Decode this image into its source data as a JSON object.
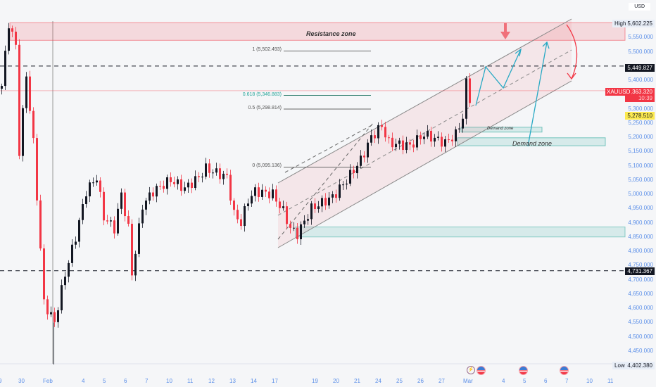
{
  "symbol": "XAUUSD",
  "currency": "USD",
  "colors": {
    "up": "#131722",
    "down": "#f23645",
    "resistance": "#f23645",
    "demand": "#26a69a",
    "projection": "#28a9c4",
    "fib": "#5b8b83"
  },
  "price_axis": {
    "ticks": [
      "5,550.000",
      "5,500.000",
      "5,400.000",
      "5,300.000",
      "5,250.000",
      "5,200.000",
      "5,150.000",
      "5,100.000",
      "5,050.000",
      "5,000.000",
      "4,950.000",
      "4,900.000",
      "4,850.000",
      "4,800.000",
      "4,750.000",
      "4,700.000",
      "4,650.000",
      "4,600.000",
      "4,550.000",
      "4,500.000",
      "4,450.000"
    ],
    "tick_values": [
      5550,
      5500,
      5400,
      5300,
      5250,
      5200,
      5150,
      5100,
      5050,
      5000,
      4950,
      4900,
      4850,
      4800,
      4750,
      4700,
      4650,
      4600,
      4550,
      4500,
      4450
    ],
    "high": {
      "label": "High",
      "value": "5,602.225",
      "num": 5602.225
    },
    "low": {
      "label": "Low",
      "value": "4,402.380",
      "num": 4402.38
    },
    "current": {
      "symbol": "XAUUSD",
      "value": "5,363.320",
      "num": 5363.32,
      "countdown": "10:39"
    },
    "level_upper": {
      "value": "5,449.827",
      "num": 5449.827
    },
    "level_lower": {
      "value": "4,731.367",
      "num": 4731.367
    },
    "yellow": {
      "value": "5,278.510",
      "num": 5278.51
    }
  },
  "time_axis": {
    "labels": [
      "9",
      "30",
      "Feb",
      "4",
      "5",
      "6",
      "7",
      "10",
      "11",
      "12",
      "13",
      "14",
      "17",
      "19",
      "20",
      "21",
      "24",
      "25",
      "26",
      "27",
      "Mar",
      "4",
      "5",
      "6",
      "7",
      "10",
      "11"
    ]
  },
  "fib": [
    {
      "label": "1 (5,502.493)",
      "price": 5502.493
    },
    {
      "label": "0.618 (5,346.883)",
      "price": 5346.883
    },
    {
      "label": "0.5 (5,298.814)",
      "price": 5298.814
    },
    {
      "label": "0 (5,095.136)",
      "price": 5095.136
    }
  ],
  "zones": {
    "resistance": {
      "label": "Resistance zone",
      "from": 5540,
      "to": 5602
    },
    "demand_small": {
      "label": "Demand zone",
      "from": 5218,
      "to": 5235
    },
    "demand_big": {
      "label": "Demand zone",
      "from": 5170,
      "to": 5198
    },
    "support": {
      "from": 4850,
      "to": 4885
    }
  },
  "chart_data": {
    "type": "candlestick",
    "anchors": [
      [
        0,
        5380
      ],
      [
        2,
        5600
      ],
      [
        4,
        5520
      ],
      [
        5,
        5150
      ],
      [
        7,
        5420
      ],
      [
        9,
        5180
      ],
      [
        12,
        4620
      ],
      [
        15,
        4550
      ],
      [
        18,
        4720
      ],
      [
        21,
        4850
      ],
      [
        24,
        5010
      ],
      [
        27,
        5060
      ],
      [
        29,
        4920
      ],
      [
        32,
        4880
      ],
      [
        34,
        5000
      ],
      [
        36,
        4880
      ],
      [
        37,
        4720
      ],
      [
        40,
        4960
      ],
      [
        43,
        5010
      ],
      [
        48,
        5050
      ],
      [
        52,
        5020
      ],
      [
        56,
        5060
      ],
      [
        58,
        5090
      ],
      [
        64,
        5060
      ],
      [
        66,
        4930
      ],
      [
        68,
        4900
      ],
      [
        70,
        4980
      ],
      [
        72,
        5010
      ],
      [
        77,
        5000
      ],
      [
        80,
        4940
      ],
      [
        82,
        4880
      ],
      [
        84,
        4860
      ],
      [
        88,
        4950
      ],
      [
        94,
        4990
      ],
      [
        98,
        5050
      ],
      [
        102,
        5120
      ],
      [
        105,
        5200
      ],
      [
        108,
        5240
      ],
      [
        110,
        5180
      ],
      [
        116,
        5170
      ],
      [
        120,
        5210
      ],
      [
        126,
        5180
      ],
      [
        129,
        5210
      ],
      [
        131,
        5270
      ],
      [
        132,
        5390
      ],
      [
        133,
        5320
      ]
    ]
  }
}
